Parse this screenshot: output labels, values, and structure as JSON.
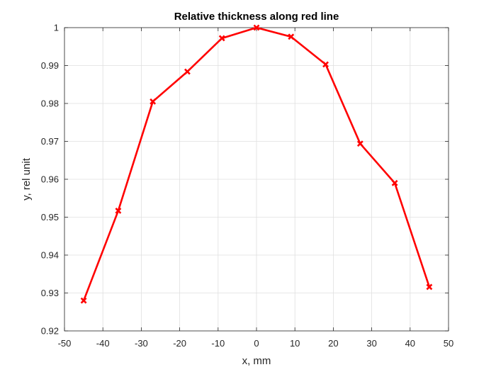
{
  "chart_data": {
    "type": "line",
    "title": "Relative thickness along red line",
    "xlabel": "x, mm",
    "ylabel": "y, rel unit",
    "xlim": [
      -50,
      50
    ],
    "ylim": [
      0.92,
      1.0
    ],
    "xticks": [
      -50,
      -40,
      -30,
      -20,
      -10,
      0,
      10,
      20,
      30,
      40,
      50
    ],
    "yticks": [
      0.92,
      0.93,
      0.94,
      0.95,
      0.96,
      0.97,
      0.98,
      0.99,
      1.0
    ],
    "xtick_labels": [
      "-50",
      "-40",
      "-30",
      "-20",
      "-10",
      "0",
      "10",
      "20",
      "30",
      "40",
      "50"
    ],
    "ytick_labels": [
      "0.92",
      "0.93",
      "0.94",
      "0.95",
      "0.96",
      "0.97",
      "0.98",
      "0.99",
      "1"
    ],
    "grid": true,
    "series": [
      {
        "color": "#ff0000",
        "marker": "x",
        "x": [
          -45,
          -36,
          -27,
          -18,
          -9,
          0,
          9,
          18,
          27,
          36,
          45
        ],
        "y": [
          0.928,
          0.9517,
          0.9805,
          0.9884,
          0.9972,
          1.0,
          0.9976,
          0.9903,
          0.9694,
          0.959,
          0.9316
        ]
      }
    ]
  }
}
